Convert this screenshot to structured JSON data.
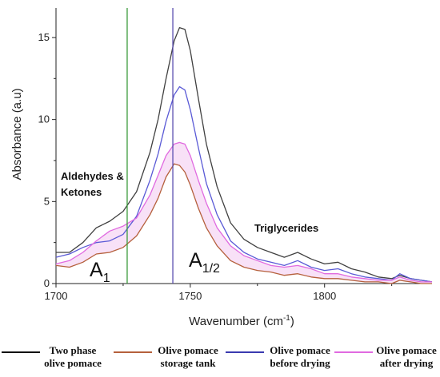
{
  "chart_data": {
    "type": "line",
    "xlabel": "Wavenumber (cm",
    "xlabel_sup": "-1",
    "xlabel_end": ")",
    "ylabel": "Absorbance (a.u)",
    "xlim": [
      1700,
      1840
    ],
    "ylim": [
      0,
      16.8
    ],
    "xticks": [
      1700,
      1750,
      1800
    ],
    "yticks": [
      0,
      5,
      10,
      15
    ],
    "grid": false,
    "legend_position": "bottom",
    "vlines": [
      {
        "x": 1726.5,
        "color": "#3a9a3a"
      },
      {
        "x": 1743.5,
        "color": "#5a4fb0"
      }
    ],
    "annotations": {
      "aldehydes_line1": "Aldehydes &",
      "aldehydes_line2": "Ketones",
      "triglycerides": "Triglycerides",
      "a1_main": "A",
      "a1_sub": "1",
      "a12_main": "A",
      "a12_sub": "1/2"
    },
    "series": [
      {
        "name": "Two phase olive pomace",
        "color": "#404040",
        "x": [
          1700,
          1705,
          1710,
          1715,
          1720,
          1725,
          1730,
          1735,
          1738,
          1741,
          1744,
          1746,
          1748,
          1750,
          1753,
          1756,
          1760,
          1765,
          1770,
          1775,
          1780,
          1785,
          1790,
          1795,
          1800,
          1805,
          1810,
          1815,
          1820,
          1825,
          1828,
          1832,
          1836,
          1840
        ],
        "y": [
          1.9,
          1.9,
          2.5,
          3.4,
          3.8,
          4.4,
          5.6,
          8.0,
          10.0,
          12.5,
          14.8,
          15.6,
          15.5,
          14.2,
          11.3,
          8.5,
          5.9,
          3.7,
          2.7,
          2.2,
          1.9,
          1.6,
          1.9,
          1.5,
          1.2,
          1.3,
          0.9,
          0.7,
          0.4,
          0.3,
          0.5,
          0.3,
          0.2,
          0.1
        ]
      },
      {
        "name": "Olive pomace storage tank",
        "color": "#b5603c",
        "x": [
          1700,
          1705,
          1710,
          1715,
          1720,
          1725,
          1730,
          1735,
          1738,
          1741,
          1744,
          1746,
          1748,
          1750,
          1753,
          1756,
          1760,
          1765,
          1770,
          1775,
          1780,
          1785,
          1790,
          1795,
          1800,
          1805,
          1810,
          1815,
          1820,
          1825,
          1828,
          1832,
          1836,
          1840
        ],
        "y": [
          1.1,
          1.0,
          1.3,
          1.8,
          1.9,
          2.2,
          2.9,
          4.2,
          5.2,
          6.5,
          7.3,
          7.2,
          6.8,
          6.0,
          4.6,
          3.4,
          2.3,
          1.4,
          1.0,
          0.8,
          0.7,
          0.5,
          0.6,
          0.4,
          0.3,
          0.3,
          0.2,
          0.1,
          0.1,
          0.0,
          0.2,
          0.1,
          0.0,
          0.0
        ]
      },
      {
        "name": "Olive pomace before drying",
        "color": "#5a5ad6",
        "x": [
          1700,
          1705,
          1710,
          1715,
          1720,
          1725,
          1730,
          1735,
          1738,
          1741,
          1744,
          1746,
          1748,
          1750,
          1753,
          1756,
          1760,
          1765,
          1770,
          1775,
          1780,
          1785,
          1790,
          1795,
          1800,
          1805,
          1810,
          1815,
          1820,
          1825,
          1828,
          1832,
          1836,
          1840
        ],
        "y": [
          1.6,
          1.8,
          2.2,
          2.5,
          2.6,
          3.0,
          4.1,
          6.3,
          7.9,
          9.9,
          11.5,
          12.0,
          11.8,
          10.6,
          8.3,
          6.1,
          4.2,
          2.6,
          1.9,
          1.5,
          1.3,
          1.1,
          1.4,
          1.0,
          0.8,
          0.9,
          0.6,
          0.4,
          0.3,
          0.2,
          0.6,
          0.3,
          0.2,
          0.1
        ]
      },
      {
        "name": "Olive pomace after drying",
        "color": "#e06ae0",
        "x": [
          1700,
          1705,
          1710,
          1715,
          1720,
          1725,
          1730,
          1735,
          1738,
          1741,
          1744,
          1746,
          1748,
          1750,
          1753,
          1756,
          1760,
          1765,
          1770,
          1775,
          1780,
          1785,
          1790,
          1795,
          1800,
          1805,
          1810,
          1815,
          1820,
          1825,
          1828,
          1832,
          1836,
          1840
        ],
        "y": [
          1.2,
          1.4,
          1.9,
          2.6,
          3.2,
          3.5,
          4.0,
          5.4,
          6.6,
          7.8,
          8.5,
          8.6,
          8.5,
          7.8,
          6.3,
          4.9,
          3.4,
          2.3,
          1.7,
          1.4,
          1.1,
          1.0,
          1.1,
          0.9,
          0.6,
          0.6,
          0.4,
          0.3,
          0.2,
          0.2,
          0.4,
          0.2,
          0.1,
          0.1
        ]
      }
    ],
    "legend": [
      {
        "line1": "Two phase",
        "line2": "olive pomace",
        "color": "#111111"
      },
      {
        "line1": "Olive pomace",
        "line2": "storage tank",
        "color": "#b5603c"
      },
      {
        "line1": "Olive pomace",
        "line2": "before drying",
        "color": "#3a3ab0"
      },
      {
        "line1": "Olive pomace",
        "line2": "after drying",
        "color": "#e06ae0"
      }
    ]
  }
}
